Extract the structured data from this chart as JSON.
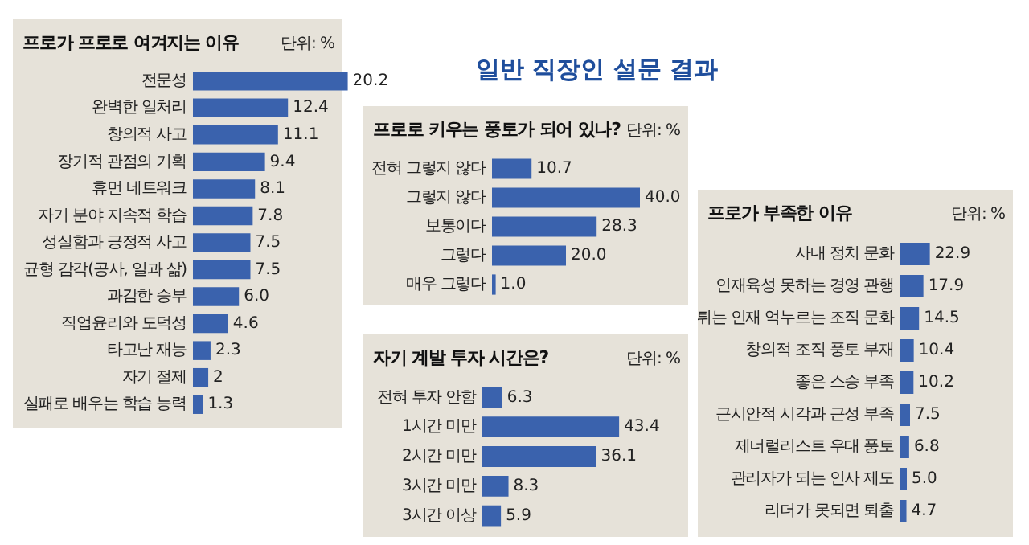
{
  "chart_data": [
    {
      "type": "other",
      "title": "일반 직장인 설문 결과"
    },
    {
      "type": "bar",
      "orientation": "horizontal",
      "title": "프로가 프로로 여겨지는 이유",
      "annotations": [
        "단위: %"
      ],
      "color": "#3a62ad",
      "categories": [
        "전문성",
        "완벽한 일처리",
        "창의적 사고",
        "장기적 관점의 기획",
        "휴먼 네트워크",
        "자기 분야 지속적 학습",
        "성실함과 긍정적 사고",
        "균형 감각(공사, 일과 삶)",
        "과감한 승부",
        "직업윤리와 도덕성",
        "타고난 재능",
        "자기 절제",
        "실패로 배우는 학습 능력"
      ],
      "values": [
        20.2,
        12.4,
        11.1,
        9.4,
        8.1,
        7.8,
        7.5,
        7.5,
        6.0,
        4.6,
        2.3,
        2,
        1.3
      ],
      "value_labels": [
        "20.2",
        "12.4",
        "11.1",
        "9.4",
        "8.1",
        "7.8",
        "7.5",
        "7.5",
        "6.0",
        "4.6",
        "2.3",
        "2",
        "1.3"
      ]
    },
    {
      "type": "bar",
      "orientation": "horizontal",
      "title": "프로로 키우는 풍토가 되어 있나?",
      "annotations": [
        "단위: %"
      ],
      "color": "#3a62ad",
      "categories": [
        "전혀 그렇지 않다",
        "그렇지 않다",
        "보통이다",
        "그렇다",
        "매우 그렇다"
      ],
      "values": [
        10.7,
        40.0,
        28.3,
        20.0,
        1.0
      ],
      "value_labels": [
        "10.7",
        "40.0",
        "28.3",
        "20.0",
        "1.0"
      ]
    },
    {
      "type": "bar",
      "orientation": "horizontal",
      "title": "자기 계발 투자 시간은?",
      "annotations": [
        "단위: %"
      ],
      "color": "#3a62ad",
      "categories": [
        "전혀 투자 안함",
        "1시간 미만",
        "2시간 미만",
        "3시간 미만",
        "3시간 이상"
      ],
      "values": [
        6.3,
        43.4,
        36.1,
        8.3,
        5.9
      ],
      "value_labels": [
        "6.3",
        "43.4",
        "36.1",
        "8.3",
        "5.9"
      ]
    },
    {
      "type": "bar",
      "orientation": "horizontal",
      "title": "프로가 부족한 이유",
      "annotations": [
        "단위: %"
      ],
      "color": "#3a62ad",
      "categories": [
        "사내 정치 문화",
        "인재육성 못하는 경영 관행",
        "튀는 인재 억누르는 조직 문화",
        "창의적 조직 풍토 부재",
        "좋은 스승 부족",
        "근시안적 시각과 근성 부족",
        "제너럴리스트 우대 풍토",
        "관리자가 되는 인사 제도",
        "리더가 못되면 퇴출"
      ],
      "values": [
        22.9,
        17.9,
        14.5,
        10.4,
        10.2,
        7.5,
        6.8,
        5.0,
        4.7
      ],
      "value_labels": [
        "22.9",
        "17.9",
        "14.5",
        "10.4",
        "10.2",
        "7.5",
        "6.8",
        "5.0",
        "4.7"
      ]
    }
  ]
}
